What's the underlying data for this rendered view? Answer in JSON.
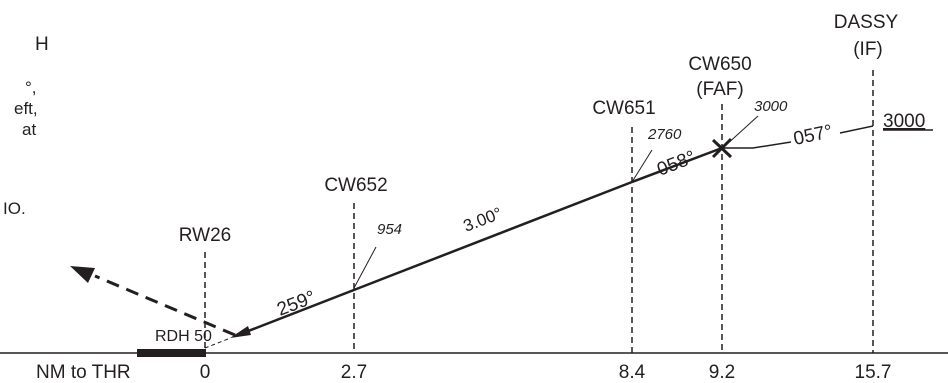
{
  "left_notes": {
    "line1": "H",
    "line2": "°,",
    "line3": "eft,",
    "line4": "at",
    "line5": "IO."
  },
  "runway": {
    "name": "RW26",
    "rdh_label": "RDH 50"
  },
  "fixes": {
    "cw652": {
      "name": "CW652",
      "altitude": "954"
    },
    "cw651": {
      "name": "CW651",
      "altitude": "2760"
    },
    "cw650": {
      "name": "CW650",
      "role": "(FAF)",
      "altitude": "3000"
    },
    "dassy": {
      "name": "DASSY",
      "role": "(IF)",
      "altitude": "3000"
    }
  },
  "segments": {
    "glide_angle": "3.00°",
    "course_final": "259°",
    "course_mid": "058°",
    "course_outer": "057°"
  },
  "distance_axis": {
    "label": "NM to THR",
    "ticks": [
      "0",
      "2.7",
      "8.4",
      "9.2",
      "15.7"
    ]
  },
  "colors": {
    "ink": "#231f20",
    "background": "#ffffff"
  }
}
